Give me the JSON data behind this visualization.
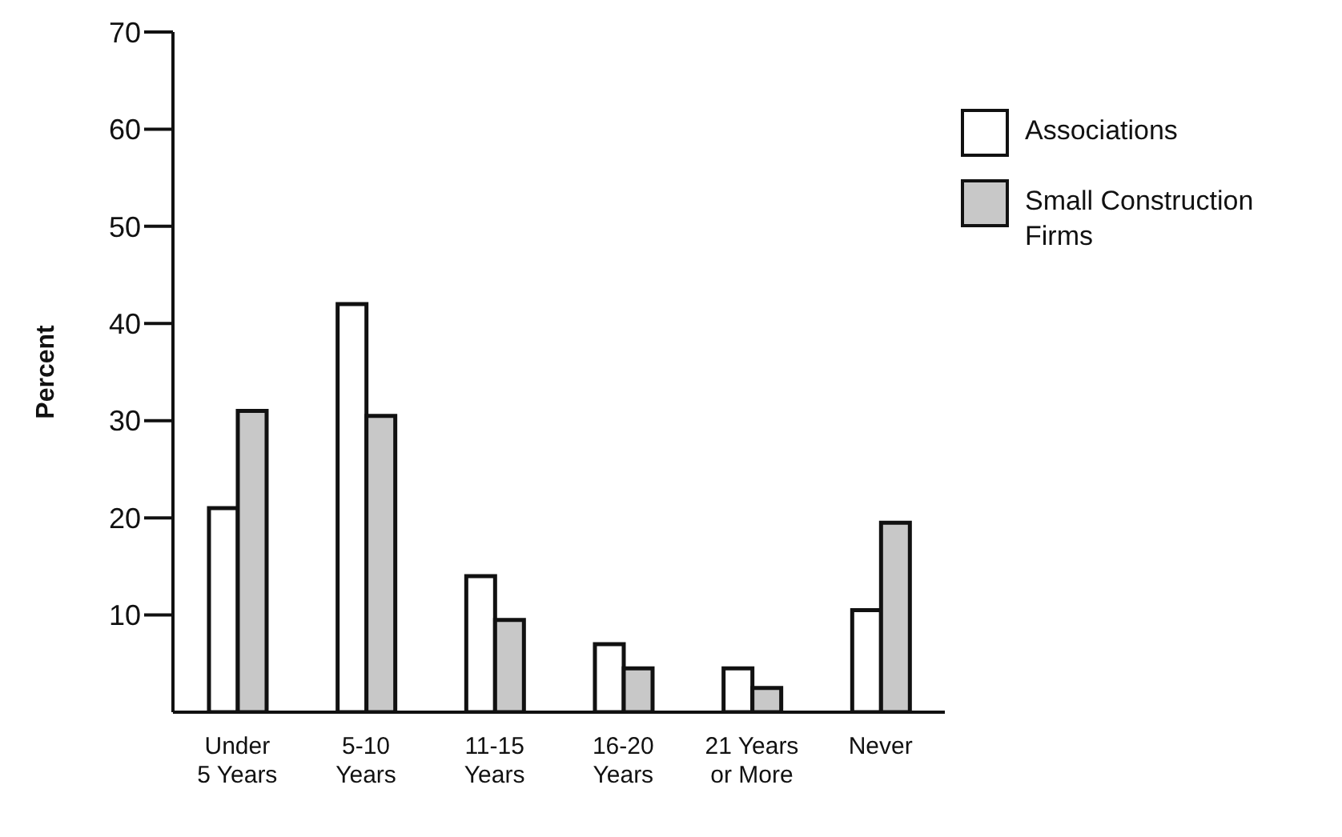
{
  "chart_data": {
    "type": "bar",
    "ylabel": "Percent",
    "categories": [
      "Under\n5 Years",
      "5-10\nYears",
      "11-15\nYears",
      "16-20\nYears",
      "21 Years\nor More",
      "Never"
    ],
    "series": [
      {
        "name": "Associations",
        "color": "#ffffff",
        "values": [
          21,
          42,
          14,
          7,
          4.5,
          10.5
        ]
      },
      {
        "name": "Small Construction Firms",
        "color": "#c8c8c8",
        "values": [
          31,
          30.5,
          9.5,
          4.5,
          2.5,
          19.5
        ]
      }
    ],
    "ylim": [
      0,
      70
    ],
    "yticks": [
      10,
      20,
      30,
      40,
      50,
      60,
      70
    ],
    "grid": false,
    "legend": "top right"
  }
}
